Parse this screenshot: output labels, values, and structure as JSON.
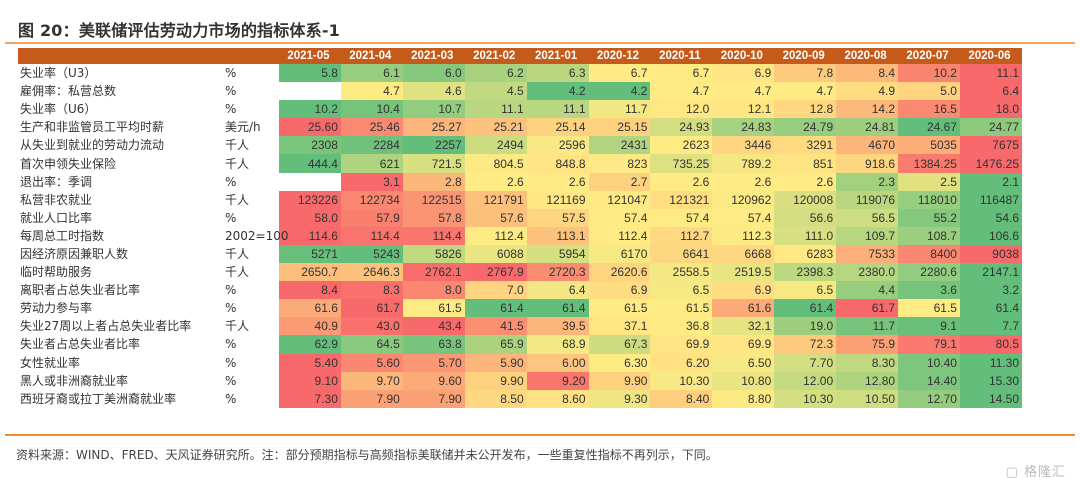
{
  "title": "图 20：美联储评估劳动力市场的指标体系-1",
  "source": "资料来源：WIND、FRED、天风证券研究所。注：部分预期指标与高频指标美联储并未公开发布，一些重复性指标不再列示，下同。",
  "watermark": "格隆汇",
  "colors": {
    "header": "#c55a1a",
    "low": "#63be7b",
    "mid": "#ffeb84",
    "high": "#f8696b",
    "rule": "#f08a2c"
  },
  "chart_data": {
    "type": "heatmap",
    "title": "图 20：美联储评估劳动力市场的指标体系-1",
    "color_scale": "per-row three-color (green–yellow–red)",
    "columns": [
      "2021-05",
      "2021-04",
      "2021-03",
      "2021-02",
      "2021-01",
      "2020-12",
      "2020-11",
      "2020-10",
      "2020-09",
      "2020-08",
      "2020-07",
      "2020-06"
    ],
    "rows": [
      {
        "label": "失业率（U3）",
        "unit": "%",
        "scale": "high_red",
        "values": [
          "5.8",
          "6.1",
          "6.0",
          "6.2",
          "6.3",
          "6.7",
          "6.7",
          "6.9",
          "7.8",
          "8.4",
          "10.2",
          "11.1"
        ]
      },
      {
        "label": "雇佣率：私营总数",
        "unit": "%",
        "scale": "high_red",
        "values": [
          "",
          "4.7",
          "4.6",
          "4.5",
          "4.2",
          "4.2",
          "4.7",
          "4.7",
          "4.7",
          "4.9",
          "5.0",
          "6.4"
        ]
      },
      {
        "label": "失业率（U6）",
        "unit": "%",
        "scale": "high_red",
        "values": [
          "10.2",
          "10.4",
          "10.7",
          "11.1",
          "11.1",
          "11.7",
          "12.0",
          "12.1",
          "12.8",
          "14.2",
          "16.5",
          "18.0"
        ]
      },
      {
        "label": "生产和非监管员工平均时薪",
        "unit": "美元/h",
        "scale": "high_red",
        "values": [
          "25.60",
          "25.46",
          "25.27",
          "25.21",
          "25.14",
          "25.15",
          "24.93",
          "24.83",
          "24.79",
          "24.81",
          "24.67",
          "24.77"
        ]
      },
      {
        "label": "从失业到就业的劳动力流动",
        "unit": "千人",
        "scale": "high_red",
        "values": [
          "2308",
          "2284",
          "2257",
          "2494",
          "2596",
          "2431",
          "2623",
          "3446",
          "3291",
          "4670",
          "5035",
          "7675"
        ]
      },
      {
        "label": "首次申领失业保险",
        "unit": "千人",
        "scale": "high_red",
        "values": [
          "444.4",
          "621",
          "721.5",
          "804.5",
          "848.8",
          "823",
          "735.25",
          "789.2",
          "851",
          "918.6",
          "1384.25",
          "1476.25"
        ]
      },
      {
        "label": "退出率：季调",
        "unit": "%",
        "scale": "high_red",
        "values": [
          "",
          "3.1",
          "2.8",
          "2.6",
          "2.6",
          "2.7",
          "2.6",
          "2.6",
          "2.6",
          "2.3",
          "2.5",
          "2.1"
        ]
      },
      {
        "label": "私营非农就业",
        "unit": "千人",
        "scale": "high_red",
        "values": [
          "123226",
          "122734",
          "122515",
          "121791",
          "121169",
          "121047",
          "121321",
          "120962",
          "120008",
          "119076",
          "118010",
          "116487"
        ]
      },
      {
        "label": "就业人口比率",
        "unit": "%",
        "scale": "high_red",
        "values": [
          "58.0",
          "57.9",
          "57.8",
          "57.6",
          "57.5",
          "57.4",
          "57.4",
          "57.4",
          "56.6",
          "56.5",
          "55.2",
          "54.6"
        ]
      },
      {
        "label": "每周总工时指数",
        "unit": "2002=100",
        "scale": "high_red",
        "values": [
          "114.6",
          "114.4",
          "114.4",
          "112.4",
          "113.1",
          "112.4",
          "112.7",
          "112.3",
          "111.0",
          "109.7",
          "108.7",
          "106.6"
        ]
      },
      {
        "label": "因经济原因兼职人数",
        "unit": "千人",
        "scale": "high_red",
        "values": [
          "5271",
          "5243",
          "5826",
          "6088",
          "5954",
          "6170",
          "6641",
          "6668",
          "6283",
          "7533",
          "8400",
          "9038"
        ]
      },
      {
        "label": "临时帮助服务",
        "unit": "千人",
        "scale": "high_red",
        "values": [
          "2650.7",
          "2646.3",
          "2762.1",
          "2767.9",
          "2720.3",
          "2620.6",
          "2558.5",
          "2519.5",
          "2398.3",
          "2380.0",
          "2280.6",
          "2147.1"
        ]
      },
      {
        "label": "离职者占总失业者比率",
        "unit": "%",
        "scale": "high_red",
        "values": [
          "8.4",
          "8.3",
          "8.0",
          "7.0",
          "6.4",
          "6.9",
          "6.5",
          "6.9",
          "6.5",
          "4.4",
          "3.6",
          "3.2"
        ]
      },
      {
        "label": "劳动力参与率",
        "unit": "%",
        "scale": "high_red",
        "values": [
          "61.6",
          "61.7",
          "61.5",
          "61.4",
          "61.4",
          "61.5",
          "61.5",
          "61.6",
          "61.4",
          "61.7",
          "61.5",
          "61.4"
        ]
      },
      {
        "label": "失业27周以上者占总失业者比率",
        "unit": "千人",
        "scale": "high_red",
        "values": [
          "40.9",
          "43.0",
          "43.4",
          "41.5",
          "39.5",
          "37.1",
          "36.8",
          "32.1",
          "19.0",
          "11.7",
          "9.1",
          "7.7"
        ]
      },
      {
        "label": "失业者占总失业者比率",
        "unit": "%",
        "scale": "high_red",
        "values": [
          "62.9",
          "64.5",
          "63.8",
          "65.9",
          "68.9",
          "67.3",
          "69.9",
          "69.9",
          "72.3",
          "75.9",
          "79.1",
          "80.5"
        ]
      },
      {
        "label": "女性就业率",
        "unit": "%",
        "scale": "high_green",
        "values": [
          "5.40",
          "5.60",
          "5.70",
          "5.90",
          "6.00",
          "6.30",
          "6.20",
          "6.50",
          "7.70",
          "8.30",
          "10.40",
          "11.30"
        ]
      },
      {
        "label": "黑人或非洲裔就业率",
        "unit": "%",
        "scale": "high_green",
        "values": [
          "9.10",
          "9.70",
          "9.60",
          "9.90",
          "9.20",
          "9.90",
          "10.30",
          "10.80",
          "12.00",
          "12.80",
          "14.40",
          "15.30"
        ]
      },
      {
        "label": "西班牙裔或拉丁美洲裔就业率",
        "unit": "%",
        "scale": "high_green",
        "values": [
          "7.30",
          "7.90",
          "7.90",
          "8.50",
          "8.60",
          "9.30",
          "8.40",
          "8.80",
          "10.30",
          "10.50",
          "12.70",
          "14.50"
        ]
      }
    ]
  }
}
